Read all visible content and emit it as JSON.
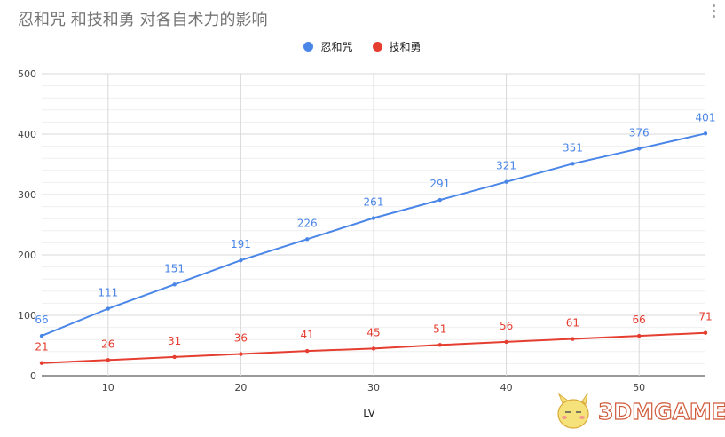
{
  "title": "忍和咒 和技和勇 对各自术力的影响",
  "watermark_text": "3DMGAME",
  "colors": {
    "series1": "#4a86e8",
    "series2": "#e53d30",
    "grid": "#d9d9d9",
    "axis": "#333333"
  },
  "chart_data": {
    "type": "line",
    "title": "忍和咒 和技和勇 对各自术力的影响",
    "xlabel": "LV",
    "ylabel": "",
    "xlim": [
      5,
      55
    ],
    "ylim": [
      0,
      500
    ],
    "x_ticks": [
      10,
      20,
      30,
      40,
      50
    ],
    "y_ticks": [
      0,
      100,
      200,
      300,
      400,
      500
    ],
    "legend_position": "top",
    "grid": true,
    "x": [
      5,
      10,
      15,
      20,
      25,
      30,
      35,
      40,
      45,
      50,
      55
    ],
    "series": [
      {
        "name": "忍和咒",
        "color": "#4a86e8",
        "values": [
          66,
          111,
          151,
          191,
          226,
          261,
          291,
          321,
          351,
          376,
          401
        ]
      },
      {
        "name": "技和勇",
        "color": "#e53d30",
        "values": [
          21,
          26,
          31,
          36,
          41,
          45,
          51,
          56,
          61,
          66,
          71
        ]
      }
    ]
  }
}
